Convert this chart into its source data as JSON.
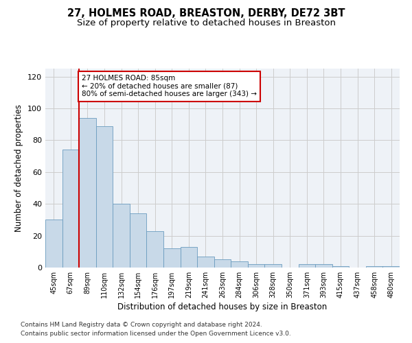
{
  "title1": "27, HOLMES ROAD, BREASTON, DERBY, DE72 3BT",
  "title2": "Size of property relative to detached houses in Breaston",
  "xlabel": "Distribution of detached houses by size in Breaston",
  "ylabel": "Number of detached properties",
  "footnote1": "Contains HM Land Registry data © Crown copyright and database right 2024.",
  "footnote2": "Contains public sector information licensed under the Open Government Licence v3.0.",
  "bar_labels": [
    "45sqm",
    "67sqm",
    "89sqm",
    "110sqm",
    "132sqm",
    "154sqm",
    "176sqm",
    "197sqm",
    "219sqm",
    "241sqm",
    "263sqm",
    "284sqm",
    "306sqm",
    "328sqm",
    "350sqm",
    "371sqm",
    "393sqm",
    "415sqm",
    "437sqm",
    "458sqm",
    "480sqm"
  ],
  "bar_values": [
    30,
    74,
    94,
    89,
    40,
    34,
    23,
    12,
    13,
    7,
    5,
    4,
    2,
    2,
    0,
    2,
    2,
    1,
    0,
    1,
    1
  ],
  "bar_color": "#c8d9e8",
  "bar_edge_color": "#6a9bbf",
  "vline_color": "#cc0000",
  "annotation_text": "27 HOLMES ROAD: 85sqm\n← 20% of detached houses are smaller (87)\n80% of semi-detached houses are larger (343) →",
  "annotation_box_color": "#cc0000",
  "ylim": [
    0,
    125
  ],
  "yticks": [
    0,
    20,
    40,
    60,
    80,
    100,
    120
  ],
  "grid_color": "#cccccc",
  "bg_color": "#eef2f7",
  "title1_fontsize": 10.5,
  "title2_fontsize": 9.5,
  "axis_label_fontsize": 8.5,
  "tick_fontsize": 8,
  "annotation_fontsize": 7.5,
  "footnote_fontsize": 6.5
}
